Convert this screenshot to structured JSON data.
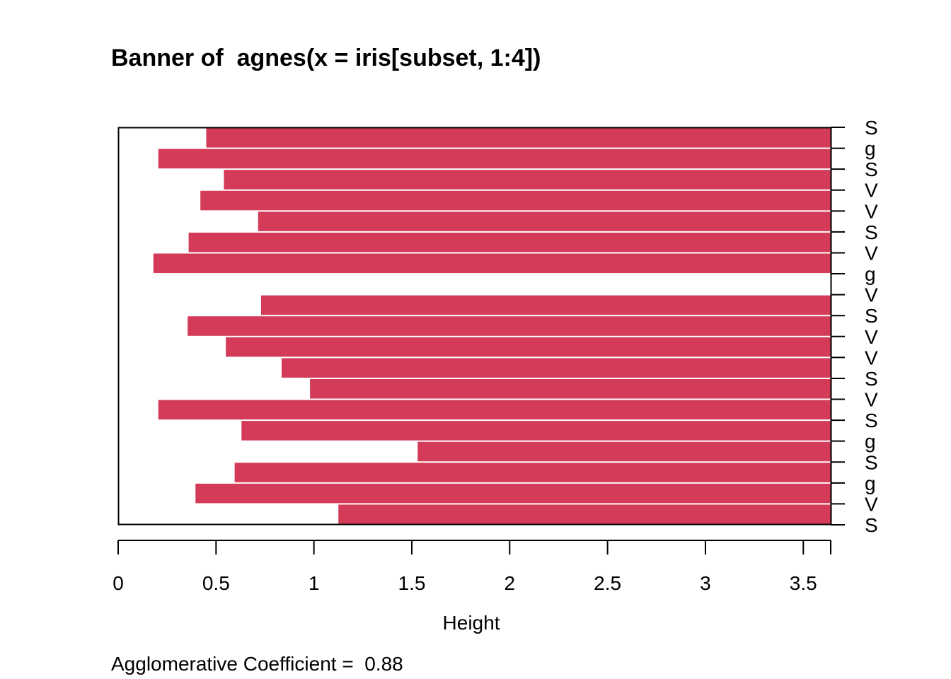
{
  "chart_data": {
    "type": "bar",
    "title": "Banner of  agnes(x = iris[subset, 1:4])",
    "xlabel": "Height",
    "ylabel": "",
    "xlim": [
      0,
      3.64
    ],
    "x_ticks": [
      0,
      0.5,
      1,
      1.5,
      2,
      2.5,
      3,
      3.5
    ],
    "x_tick_labels": [
      "0",
      "0.5",
      "1",
      "1.5",
      "2",
      "2.5",
      "3",
      "3.5"
    ],
    "bar_color": "#D33B58",
    "labels": [
      "S",
      "g",
      "S",
      "V",
      "V",
      "S",
      "V",
      "g",
      "V",
      "S",
      "V",
      "V",
      "S",
      "V",
      "S",
      "g",
      "S",
      "g",
      "V",
      "S"
    ],
    "merge_heights": [
      0.45,
      0.205,
      0.54,
      0.42,
      0.715,
      0.36,
      0.18,
      3.64,
      0.73,
      0.355,
      0.55,
      0.835,
      0.98,
      0.205,
      0.63,
      1.53,
      0.595,
      0.395,
      1.125
    ]
  },
  "footer": {
    "coefficient_text": "Agglomerative Coefficient =  0.88"
  }
}
